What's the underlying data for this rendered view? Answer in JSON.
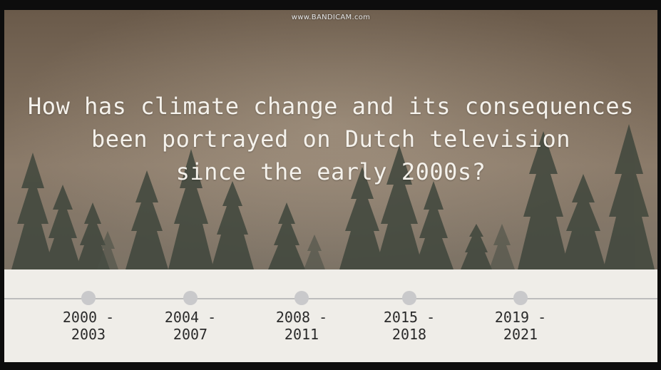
{
  "watermark": "www.BANDICAM.com",
  "slide": {
    "title_lines": [
      "How has climate change and its consequences",
      "been portrayed on Dutch television",
      "since the early 2000s?"
    ]
  },
  "timeline": {
    "items": [
      {
        "start": "2000 -",
        "end": "2003"
      },
      {
        "start": "2004 -",
        "end": "2007"
      },
      {
        "start": "2008 -",
        "end": "2011"
      },
      {
        "start": "2015 -",
        "end": "2018"
      },
      {
        "start": "2019 -",
        "end": "2021"
      }
    ]
  },
  "colors": {
    "hero_tone": "#7c6c5b",
    "tree": "#3a4238",
    "timeline_bg": "#efede8",
    "node": "#c9c9cb",
    "text": "#2a2a2a"
  }
}
